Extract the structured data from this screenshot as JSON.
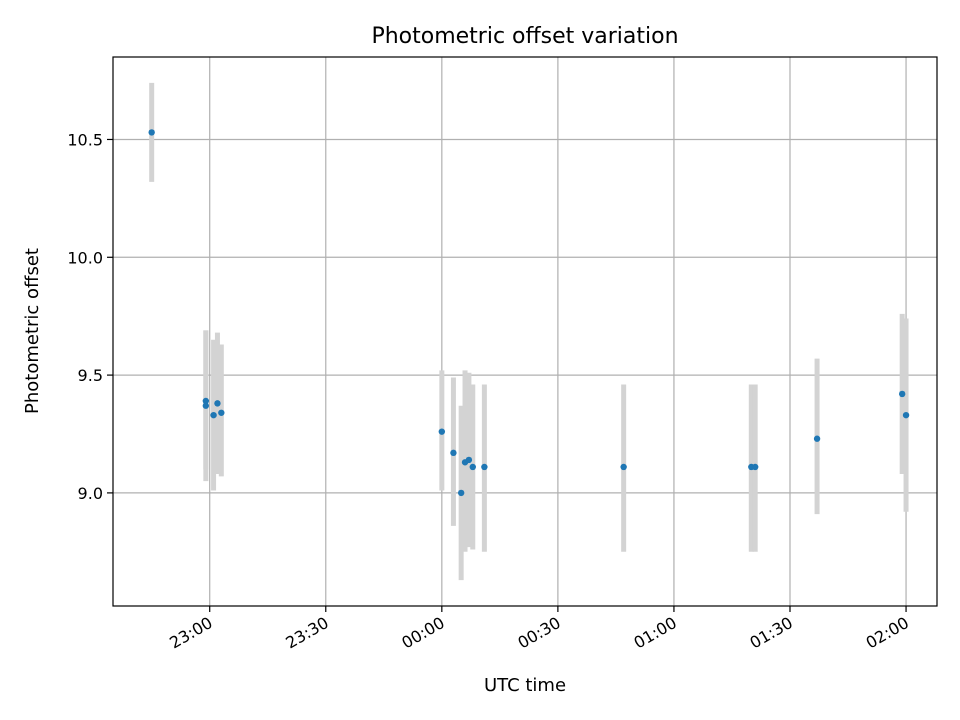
{
  "chart_data": {
    "type": "scatter",
    "title": "Photometric offset variation",
    "xlabel": "UTC time",
    "ylabel": "Photometric offset",
    "grid": true,
    "legend": "none",
    "colors": {
      "points": "#1f77b4",
      "errorbars": "#d3d3d3",
      "grid": "#b0b0b0"
    },
    "x_axis": {
      "unit": "time (HH:MM, day starting 22:00)",
      "range": [
        "22:35",
        "02:08"
      ],
      "ticks": [
        "23:00",
        "23:30",
        "00:00",
        "00:30",
        "01:00",
        "01:30",
        "02:00"
      ]
    },
    "y_axis": {
      "range": [
        8.52,
        10.85
      ],
      "ticks": [
        "9.0",
        "9.5",
        "10.0",
        "10.5"
      ]
    },
    "points": [
      {
        "time": "22:45",
        "y": 10.53,
        "err_low": 10.32,
        "err_high": 10.74
      },
      {
        "time": "22:59",
        "y": 9.39,
        "err_low": 9.05,
        "err_high": 9.69
      },
      {
        "time": "22:59",
        "y": 9.37,
        "err_low": 9.1,
        "err_high": 9.69
      },
      {
        "time": "23:01",
        "y": 9.33,
        "err_low": 9.01,
        "err_high": 9.65
      },
      {
        "time": "23:02",
        "y": 9.38,
        "err_low": 9.08,
        "err_high": 9.68
      },
      {
        "time": "23:03",
        "y": 9.34,
        "err_low": 9.07,
        "err_high": 9.63
      },
      {
        "time": "00:00",
        "y": 9.26,
        "err_low": 9.01,
        "err_high": 9.52
      },
      {
        "time": "00:03",
        "y": 9.17,
        "err_low": 8.86,
        "err_high": 9.49
      },
      {
        "time": "00:05",
        "y": 9.0,
        "err_low": 8.63,
        "err_high": 9.37
      },
      {
        "time": "00:06",
        "y": 9.13,
        "err_low": 8.75,
        "err_high": 9.52
      },
      {
        "time": "00:07",
        "y": 9.14,
        "err_low": 8.77,
        "err_high": 9.51
      },
      {
        "time": "00:08",
        "y": 9.11,
        "err_low": 8.76,
        "err_high": 9.46
      },
      {
        "time": "00:11",
        "y": 9.11,
        "err_low": 8.75,
        "err_high": 9.46
      },
      {
        "time": "00:47",
        "y": 9.11,
        "err_low": 8.75,
        "err_high": 9.46
      },
      {
        "time": "01:20",
        "y": 9.11,
        "err_low": 8.75,
        "err_high": 9.46
      },
      {
        "time": "01:21",
        "y": 9.11,
        "err_low": 8.75,
        "err_high": 9.46
      },
      {
        "time": "01:37",
        "y": 9.23,
        "err_low": 8.91,
        "err_high": 9.57
      },
      {
        "time": "01:59",
        "y": 9.42,
        "err_low": 9.08,
        "err_high": 9.76
      },
      {
        "time": "02:00",
        "y": 9.33,
        "err_low": 8.92,
        "err_high": 9.74
      }
    ]
  }
}
